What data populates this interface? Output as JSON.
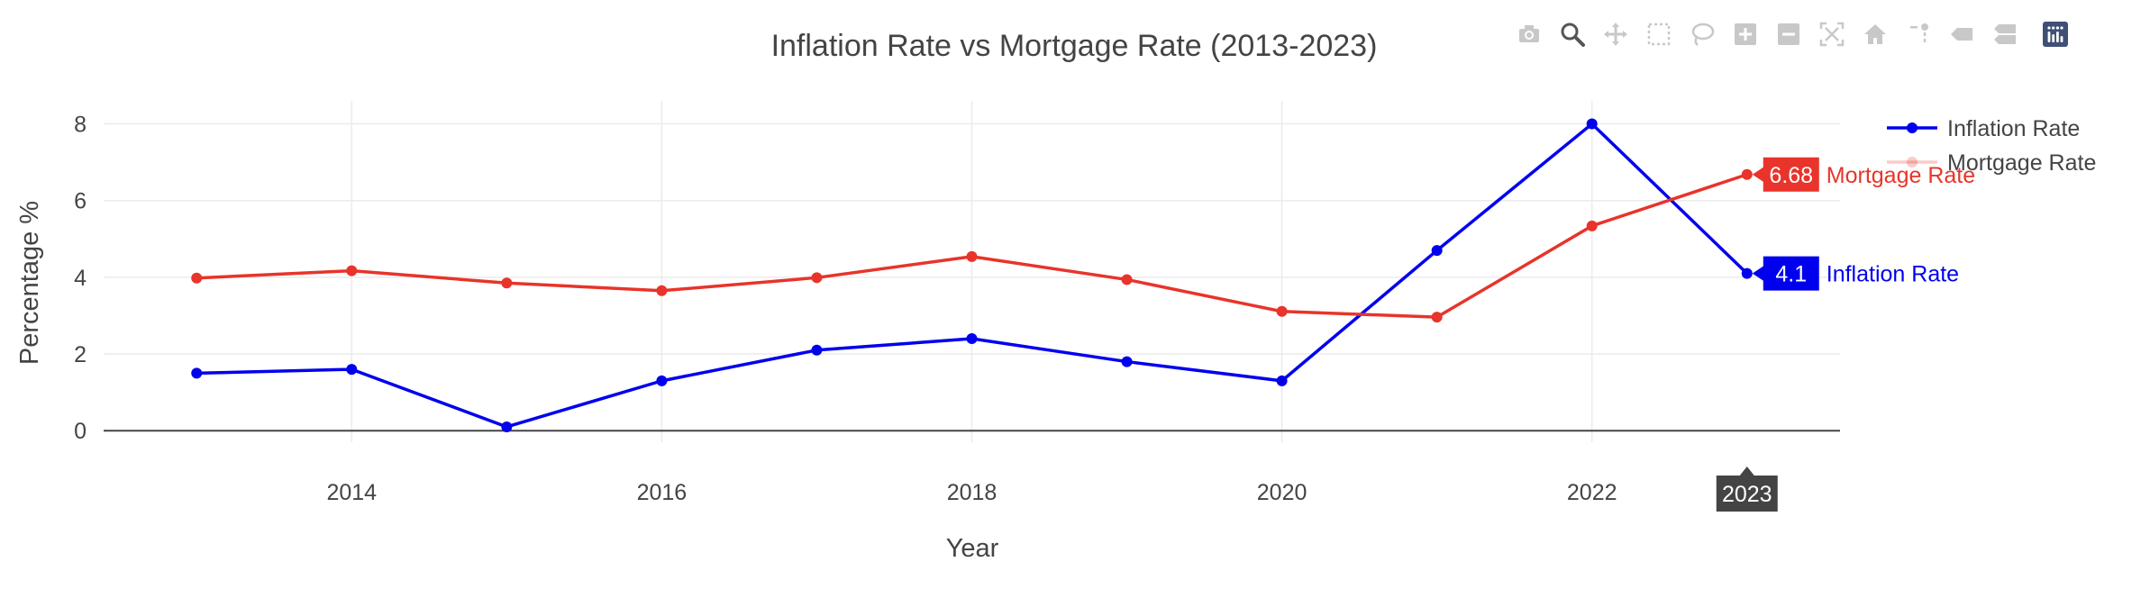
{
  "chart_data": {
    "type": "line",
    "title": "Inflation Rate vs Mortgage Rate (2013-2023)",
    "xlabel": "Year",
    "ylabel": "Percentage %",
    "x": [
      2013,
      2014,
      2015,
      2016,
      2017,
      2018,
      2019,
      2020,
      2021,
      2022,
      2023
    ],
    "xlim": [
      2012.4,
      2023.6
    ],
    "ylim": [
      -0.3,
      8.6
    ],
    "x_ticks": [
      "2014",
      "2016",
      "2018",
      "2020",
      "2022"
    ],
    "y_ticks": [
      "0",
      "2",
      "4",
      "6",
      "8"
    ],
    "grid": true,
    "legend_position": "top-right",
    "series": [
      {
        "name": "Inflation Rate",
        "color": "#0000ee",
        "values": [
          1.5,
          1.6,
          0.1,
          1.3,
          2.1,
          2.4,
          1.8,
          1.3,
          4.7,
          8.0,
          4.1
        ]
      },
      {
        "name": "Mortgage Rate",
        "color": "#e8342a",
        "values": [
          3.98,
          4.17,
          3.85,
          3.65,
          3.99,
          4.54,
          3.94,
          3.11,
          2.96,
          5.34,
          6.68
        ]
      }
    ],
    "hover": {
      "x_label": "2023",
      "labels": [
        {
          "series": "Mortgage Rate",
          "value": "6.68",
          "name": "Mortgage Rate"
        },
        {
          "series": "Inflation Rate",
          "value": "4.1",
          "name": "Inflation Rate"
        }
      ]
    }
  },
  "modebar": {
    "icons": [
      "camera-icon",
      "zoom-icon",
      "pan-icon",
      "box-select-icon",
      "lasso-select-icon",
      "zoom-in-icon",
      "zoom-out-icon",
      "autoscale-icon",
      "reset-axes-icon",
      "spike-lines-icon",
      "hover-closest-icon",
      "hover-compare-icon",
      "plotly-logo-icon"
    ],
    "active": "zoom-icon",
    "icon_color": "#c8c8c8",
    "active_color": "#555555",
    "logo_color": "#3f4f75"
  }
}
